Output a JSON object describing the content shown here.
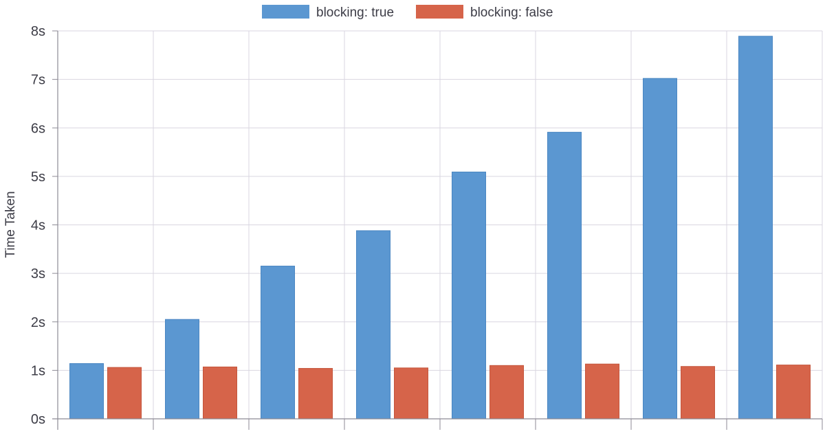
{
  "chart_data": {
    "type": "bar",
    "ylabel": "Time Taken",
    "xlabel": "",
    "ylim": [
      0,
      8
    ],
    "yticks": [
      0,
      1,
      2,
      3,
      4,
      5,
      6,
      7,
      8
    ],
    "ytick_labels": [
      "0s",
      "1s",
      "2s",
      "3s",
      "4s",
      "5s",
      "6s",
      "7s",
      "8s"
    ],
    "categories": [
      "",
      "",
      "",
      "",
      "",
      "",
      "",
      ""
    ],
    "grid": true,
    "legend_position": "top-center",
    "series": [
      {
        "name": "blocking: true",
        "color": "#5b97d1",
        "values": [
          1.14,
          2.05,
          3.15,
          3.88,
          5.09,
          5.91,
          7.02,
          7.89
        ]
      },
      {
        "name": "blocking: false",
        "color": "#d6644a",
        "values": [
          1.06,
          1.07,
          1.04,
          1.05,
          1.1,
          1.13,
          1.08,
          1.11
        ]
      }
    ]
  }
}
